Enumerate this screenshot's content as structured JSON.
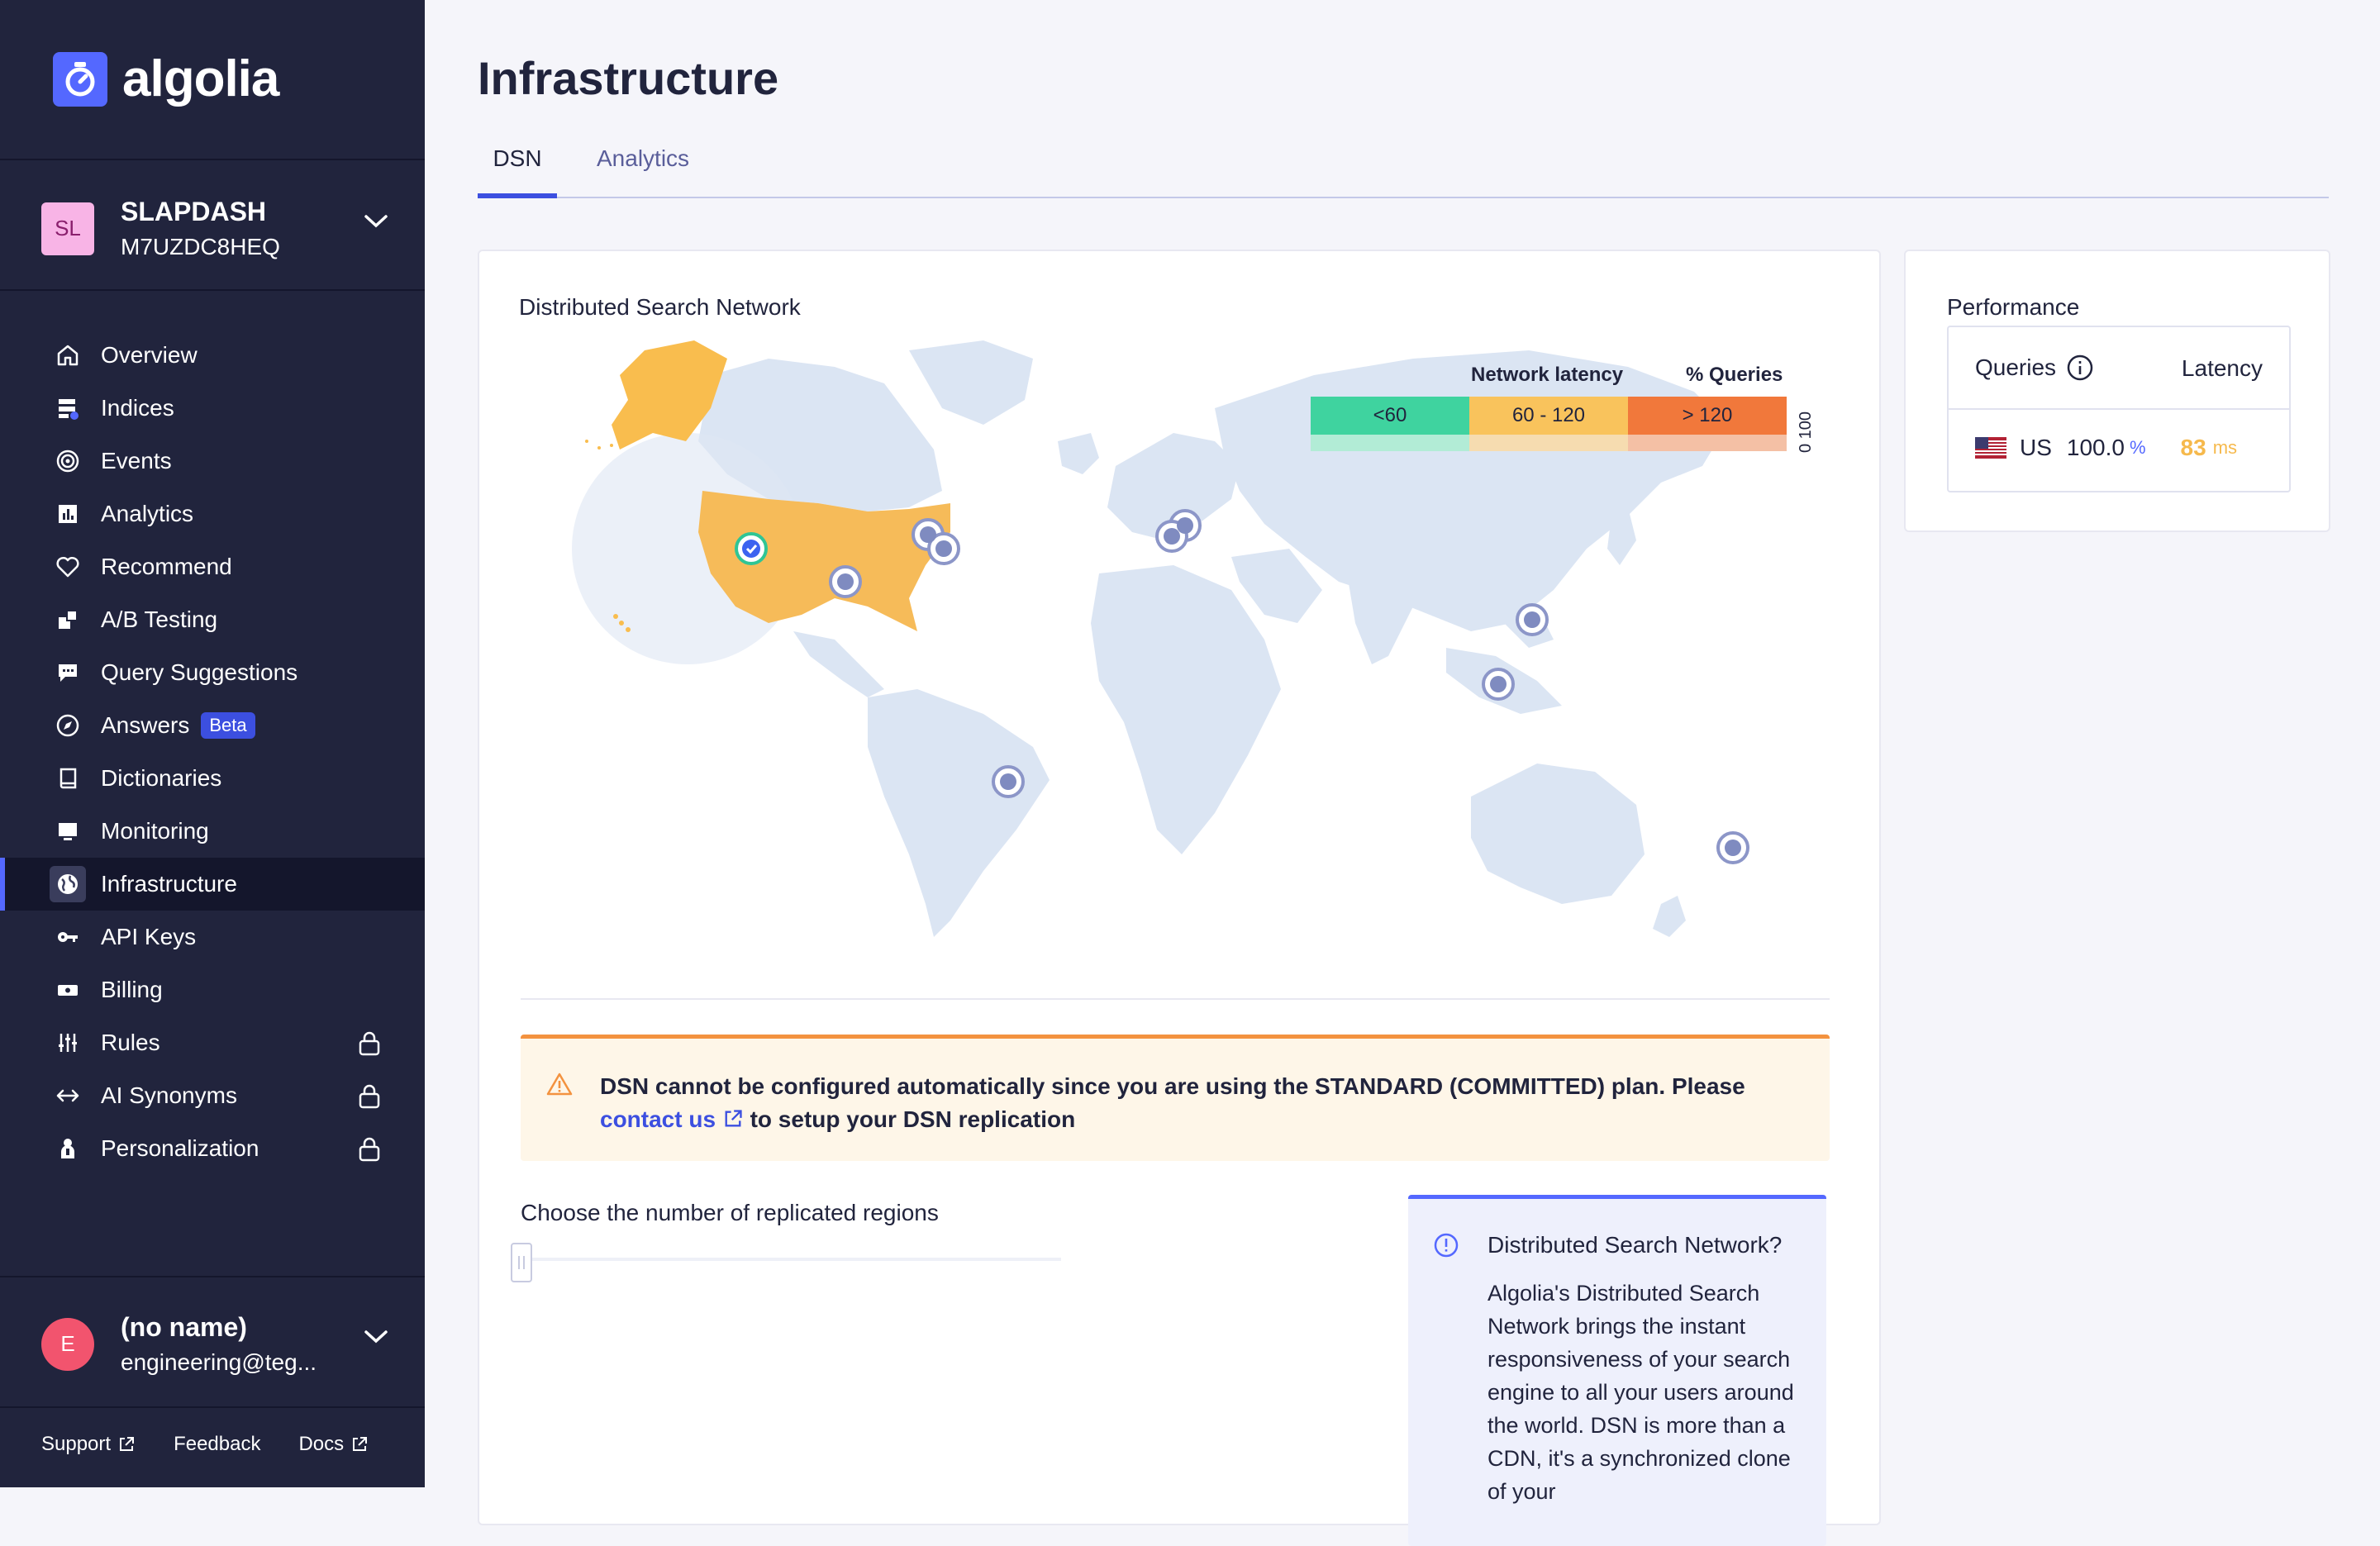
{
  "brand": {
    "name": "algolia",
    "accent": "#5468ff"
  },
  "app_switcher": {
    "avatar": "SL",
    "name": "SLAPDASH",
    "id": "M7UZDC8HEQ"
  },
  "nav": [
    {
      "label": "Overview",
      "icon": "home-icon"
    },
    {
      "label": "Indices",
      "icon": "indices-icon"
    },
    {
      "label": "Events",
      "icon": "events-icon"
    },
    {
      "label": "Analytics",
      "icon": "analytics-icon"
    },
    {
      "label": "Recommend",
      "icon": "heart-icon"
    },
    {
      "label": "A/B Testing",
      "icon": "ab-testing-icon"
    },
    {
      "label": "Query Suggestions",
      "icon": "chat-icon"
    },
    {
      "label": "Answers",
      "icon": "compass-icon",
      "badge": "Beta"
    },
    {
      "label": "Dictionaries",
      "icon": "book-icon"
    },
    {
      "label": "Monitoring",
      "icon": "monitor-icon"
    },
    {
      "label": "Infrastructure",
      "icon": "globe-icon",
      "active": true
    },
    {
      "label": "API Keys",
      "icon": "key-icon"
    },
    {
      "label": "Billing",
      "icon": "billing-icon"
    },
    {
      "label": "Rules",
      "icon": "sliders-icon",
      "locked": true
    },
    {
      "label": "AI Synonyms",
      "icon": "arrows-icon",
      "locked": true
    },
    {
      "label": "Personalization",
      "icon": "person-icon",
      "locked": true
    }
  ],
  "user": {
    "avatar": "E",
    "name": "(no name)",
    "email": "engineering@teg..."
  },
  "footer": {
    "support": "Support",
    "feedback": "Feedback",
    "docs": "Docs"
  },
  "page": {
    "title": "Infrastructure",
    "tabs": [
      "DSN",
      "Analytics"
    ],
    "active_tab": "DSN"
  },
  "dsn": {
    "title": "Distributed Search Network",
    "legend": {
      "latency_label": "Network latency",
      "queries_label": "% Queries",
      "axis": "0 100",
      "segments": [
        {
          "label": "<60",
          "color": "#3fd39f",
          "light": "#b2ecd6"
        },
        {
          "label": "60 - 120",
          "color": "#f9c35c",
          "light": "#f6dcb0"
        },
        {
          "label": "> 120",
          "color": "#f1783b",
          "light": "#f4c0a5"
        }
      ]
    },
    "alert": {
      "text_before": "DSN cannot be configured automatically since you are using the STANDARD (COMMITTED) plan. Please",
      "link": "contact us",
      "text_after": "to setup your DSN replication"
    },
    "regions_label": "Choose the number of replicated regions",
    "info": {
      "title": "Distributed Search Network?",
      "body": "Algolia's Distributed Search Network brings the instant responsiveness of your search engine to all your users around the world. DSN is more than a CDN, it's a synchronized clone of your"
    }
  },
  "performance": {
    "title": "Performance",
    "col_queries": "Queries",
    "col_latency": "Latency",
    "rows": [
      {
        "country": "US",
        "percent": "100.0",
        "percent_unit": "%",
        "latency": "83",
        "latency_unit": "ms"
      }
    ]
  }
}
